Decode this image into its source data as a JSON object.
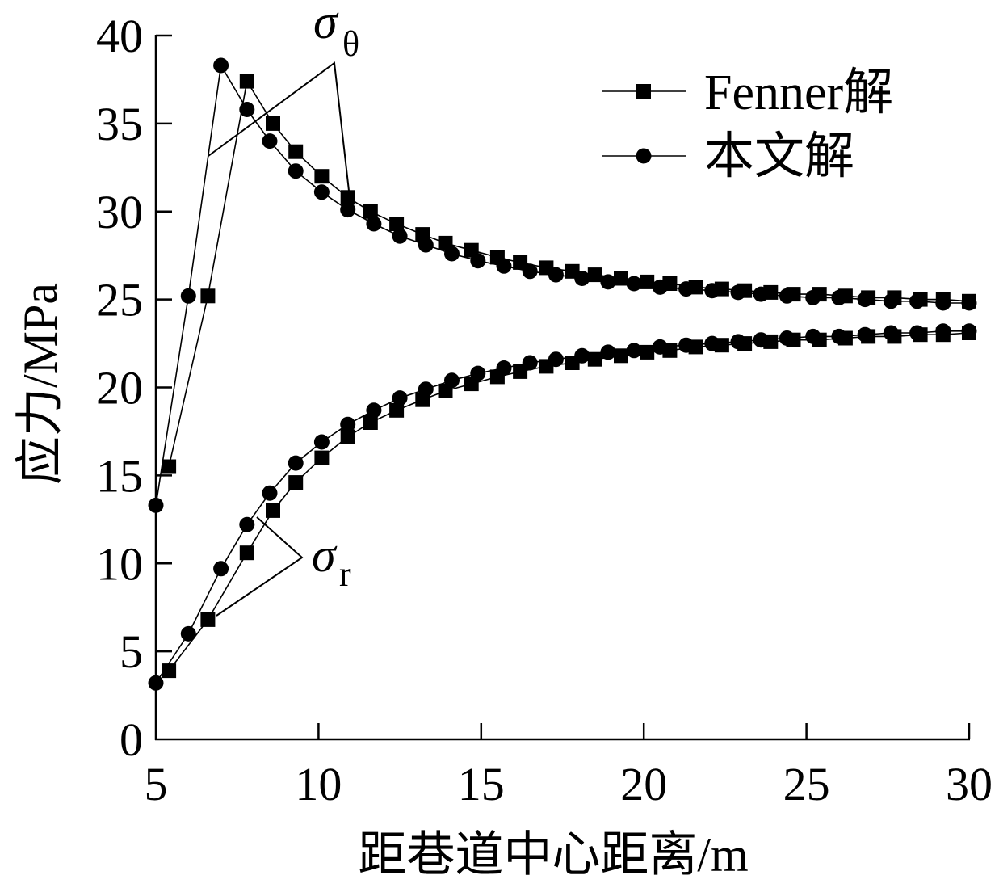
{
  "chart_data": {
    "type": "line",
    "xlabel": "距巷道中心距离/m",
    "ylabel": "应力/MPa",
    "xlim": [
      5,
      30
    ],
    "ylim": [
      0,
      40
    ],
    "xticks": [
      5,
      10,
      15,
      20,
      25,
      30
    ],
    "yticks": [
      0,
      5,
      10,
      15,
      20,
      25,
      30,
      35,
      40
    ],
    "grid": false,
    "legend_position": "top-right",
    "series": [
      {
        "name": "Fenner解",
        "marker": "square",
        "color": "#000000",
        "x": [
          5.4,
          6.6,
          7.8,
          8.6,
          9.3,
          10.1,
          10.9,
          11.6,
          12.4,
          13.2,
          13.9,
          14.7,
          15.5,
          16.2,
          17.0,
          17.8,
          18.5,
          19.3,
          20.1,
          20.8,
          21.6,
          22.4,
          23.1,
          23.9,
          24.6,
          25.4,
          26.2,
          26.9,
          27.7,
          28.5,
          29.2,
          30.0
        ],
        "sigma_theta": [
          15.5,
          25.2,
          37.4,
          35.0,
          33.4,
          32.0,
          30.8,
          30.0,
          29.3,
          28.7,
          28.2,
          27.8,
          27.4,
          27.1,
          26.8,
          26.6,
          26.4,
          26.2,
          26.0,
          25.9,
          25.7,
          25.6,
          25.5,
          25.4,
          25.3,
          25.3,
          25.2,
          25.1,
          25.1,
          25.0,
          25.0,
          24.9
        ],
        "sigma_r": [
          3.9,
          6.8,
          10.6,
          13.0,
          14.6,
          16.0,
          17.2,
          18.0,
          18.7,
          19.3,
          19.8,
          20.2,
          20.6,
          20.9,
          21.2,
          21.4,
          21.6,
          21.8,
          22.0,
          22.1,
          22.3,
          22.4,
          22.5,
          22.6,
          22.7,
          22.7,
          22.8,
          22.9,
          22.9,
          23.0,
          23.0,
          23.1
        ]
      },
      {
        "name": "本文解",
        "marker": "circle",
        "color": "#000000",
        "x": [
          5.0,
          6.0,
          7.0,
          7.8,
          8.5,
          9.3,
          10.1,
          10.9,
          11.7,
          12.5,
          13.3,
          14.1,
          14.9,
          15.7,
          16.5,
          17.3,
          18.1,
          18.9,
          19.7,
          20.5,
          21.3,
          22.1,
          22.9,
          23.6,
          24.4,
          25.2,
          26.0,
          26.8,
          27.6,
          28.4,
          29.2,
          30.0
        ],
        "sigma_theta": [
          13.3,
          25.2,
          38.3,
          35.8,
          34.0,
          32.3,
          31.1,
          30.1,
          29.3,
          28.6,
          28.1,
          27.6,
          27.2,
          26.9,
          26.6,
          26.4,
          26.2,
          26.0,
          25.9,
          25.7,
          25.6,
          25.5,
          25.4,
          25.3,
          25.2,
          25.1,
          25.1,
          25.0,
          24.9,
          24.9,
          24.8,
          24.8
        ],
        "sigma_r": [
          3.2,
          6.0,
          9.7,
          12.2,
          14.0,
          15.7,
          16.9,
          17.9,
          18.7,
          19.4,
          19.9,
          20.4,
          20.8,
          21.1,
          21.4,
          21.6,
          21.8,
          22.0,
          22.1,
          22.3,
          22.4,
          22.5,
          22.6,
          22.7,
          22.8,
          22.9,
          22.9,
          23.0,
          23.1,
          23.1,
          23.2,
          23.2
        ]
      }
    ],
    "annotations": [
      {
        "symbol": "σ",
        "subscript": "θ"
      },
      {
        "symbol": "σ",
        "subscript": "r"
      }
    ]
  }
}
